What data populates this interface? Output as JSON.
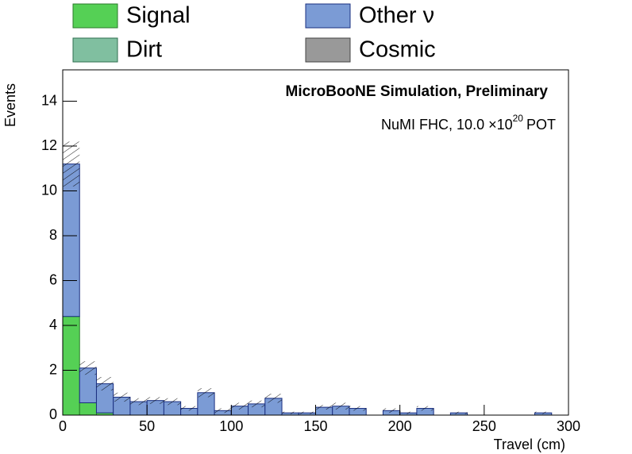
{
  "chart_data": {
    "type": "histogram",
    "title": "MicroBooNE Simulation, Preliminary",
    "annotation": {
      "text": "NuMI FHC, 10.0  ×10",
      "exponent": "20",
      "suffix": "POT"
    },
    "x_label": "Travel (cm)",
    "y_label": "Events",
    "bins": [
      0,
      10,
      20,
      30,
      40,
      50,
      60,
      70,
      80,
      90,
      100,
      110,
      120,
      130,
      140,
      150,
      160,
      170,
      180,
      190,
      200,
      210,
      220,
      230,
      240,
      250,
      260,
      270,
      280,
      290,
      300
    ],
    "series": [
      {
        "name": "Signal",
        "color": "#55d055",
        "values": [
          4.4,
          0.55,
          0.1,
          0,
          0,
          0,
          0,
          0,
          0,
          0,
          0,
          0,
          0,
          0,
          0,
          0,
          0,
          0,
          0,
          0,
          0,
          0,
          0,
          0,
          0,
          0,
          0,
          0,
          0,
          0
        ]
      },
      {
        "name": "Other ν",
        "color": "#7b9bd5",
        "values": [
          6.8,
          1.55,
          1.3,
          0.8,
          0.6,
          0.65,
          0.6,
          0.3,
          1.0,
          0.2,
          0.4,
          0.5,
          0.75,
          0.1,
          0.1,
          0.35,
          0.4,
          0.3,
          0,
          0.2,
          0.1,
          0.3,
          0,
          0.1,
          0,
          0,
          0,
          0,
          0.1,
          0
        ]
      },
      {
        "name": "Dirt",
        "color": "#80bfa0",
        "values": [
          0,
          0,
          0,
          0,
          0,
          0,
          0,
          0,
          0,
          0,
          0,
          0,
          0,
          0,
          0,
          0,
          0,
          0,
          0,
          0,
          0,
          0,
          0,
          0,
          0,
          0,
          0,
          0,
          0,
          0
        ]
      },
      {
        "name": "Cosmic",
        "color": "#999999",
        "values": [
          0,
          0,
          0,
          0,
          0,
          0,
          0,
          0,
          0,
          0,
          0,
          0,
          0,
          0,
          0,
          0,
          0,
          0,
          0,
          0,
          0,
          0,
          0,
          0,
          0,
          0,
          0,
          0,
          0,
          0
        ]
      }
    ],
    "errors": [
      1.0,
      0.3,
      0.3,
      0.2,
      0.15,
      0.15,
      0.15,
      0.1,
      0.2,
      0.1,
      0.15,
      0.15,
      0.2,
      0.05,
      0.05,
      0.1,
      0.15,
      0.1,
      0,
      0.1,
      0.05,
      0.1,
      0,
      0.05,
      0,
      0,
      0,
      0,
      0.05,
      0
    ],
    "xlim": [
      0,
      300
    ],
    "ylim": [
      0,
      15.4
    ],
    "xticks": [
      0,
      50,
      100,
      150,
      200,
      250,
      300
    ],
    "yticks": [
      0,
      2,
      4,
      6,
      8,
      10,
      12,
      14
    ]
  }
}
